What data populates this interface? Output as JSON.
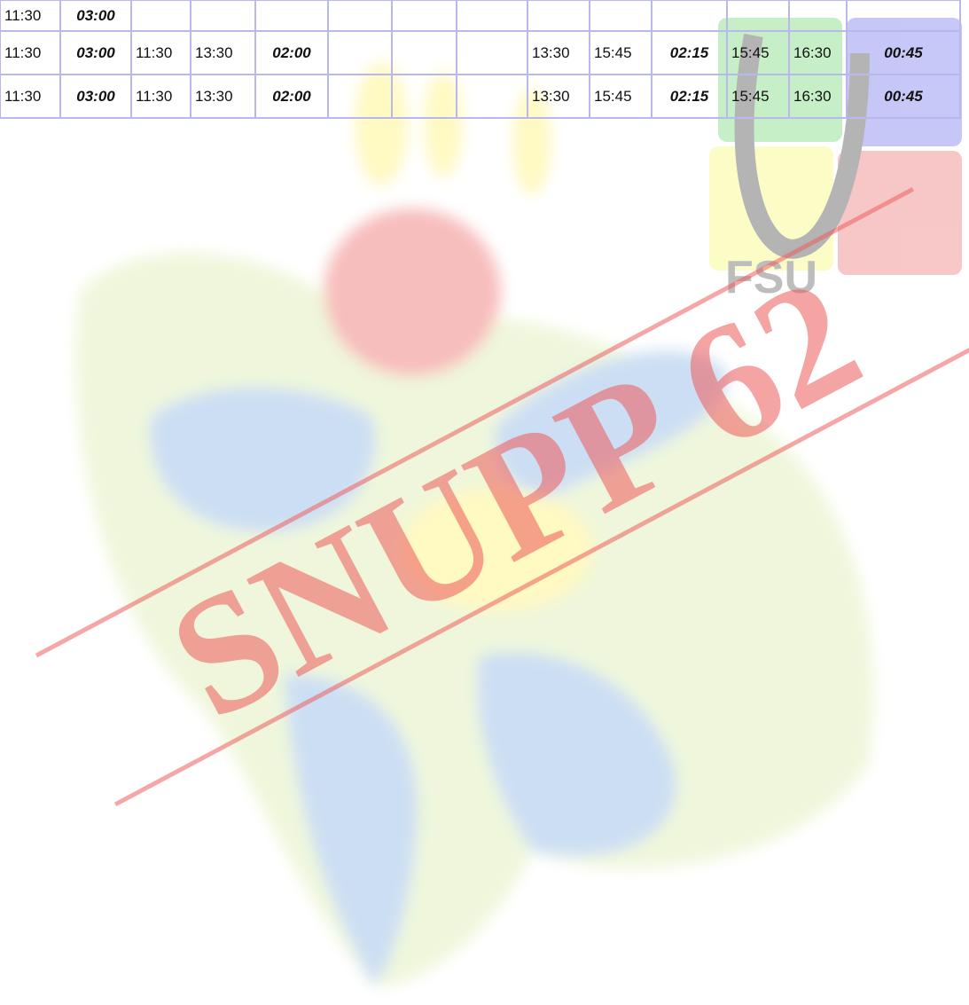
{
  "table": {
    "rows": [
      [
        "11:30",
        "03:00",
        null,
        null,
        null,
        null,
        null,
        null,
        null,
        null,
        null,
        null,
        null,
        null
      ],
      [
        "11:30",
        "03:00",
        "11:30",
        "13:30",
        "02:00",
        null,
        null,
        null,
        "13:30",
        "15:45",
        "02:15",
        "15:45",
        "16:30",
        "00:45"
      ],
      [
        "11:30",
        "03:00",
        "11:30",
        "13:30",
        "02:00",
        null,
        null,
        null,
        "13:30",
        "15:45",
        "02:15",
        "15:45",
        "16:30",
        "00:45"
      ]
    ]
  },
  "watermark": {
    "stamp": "SNUPP 62",
    "logo_text": "FSU"
  }
}
